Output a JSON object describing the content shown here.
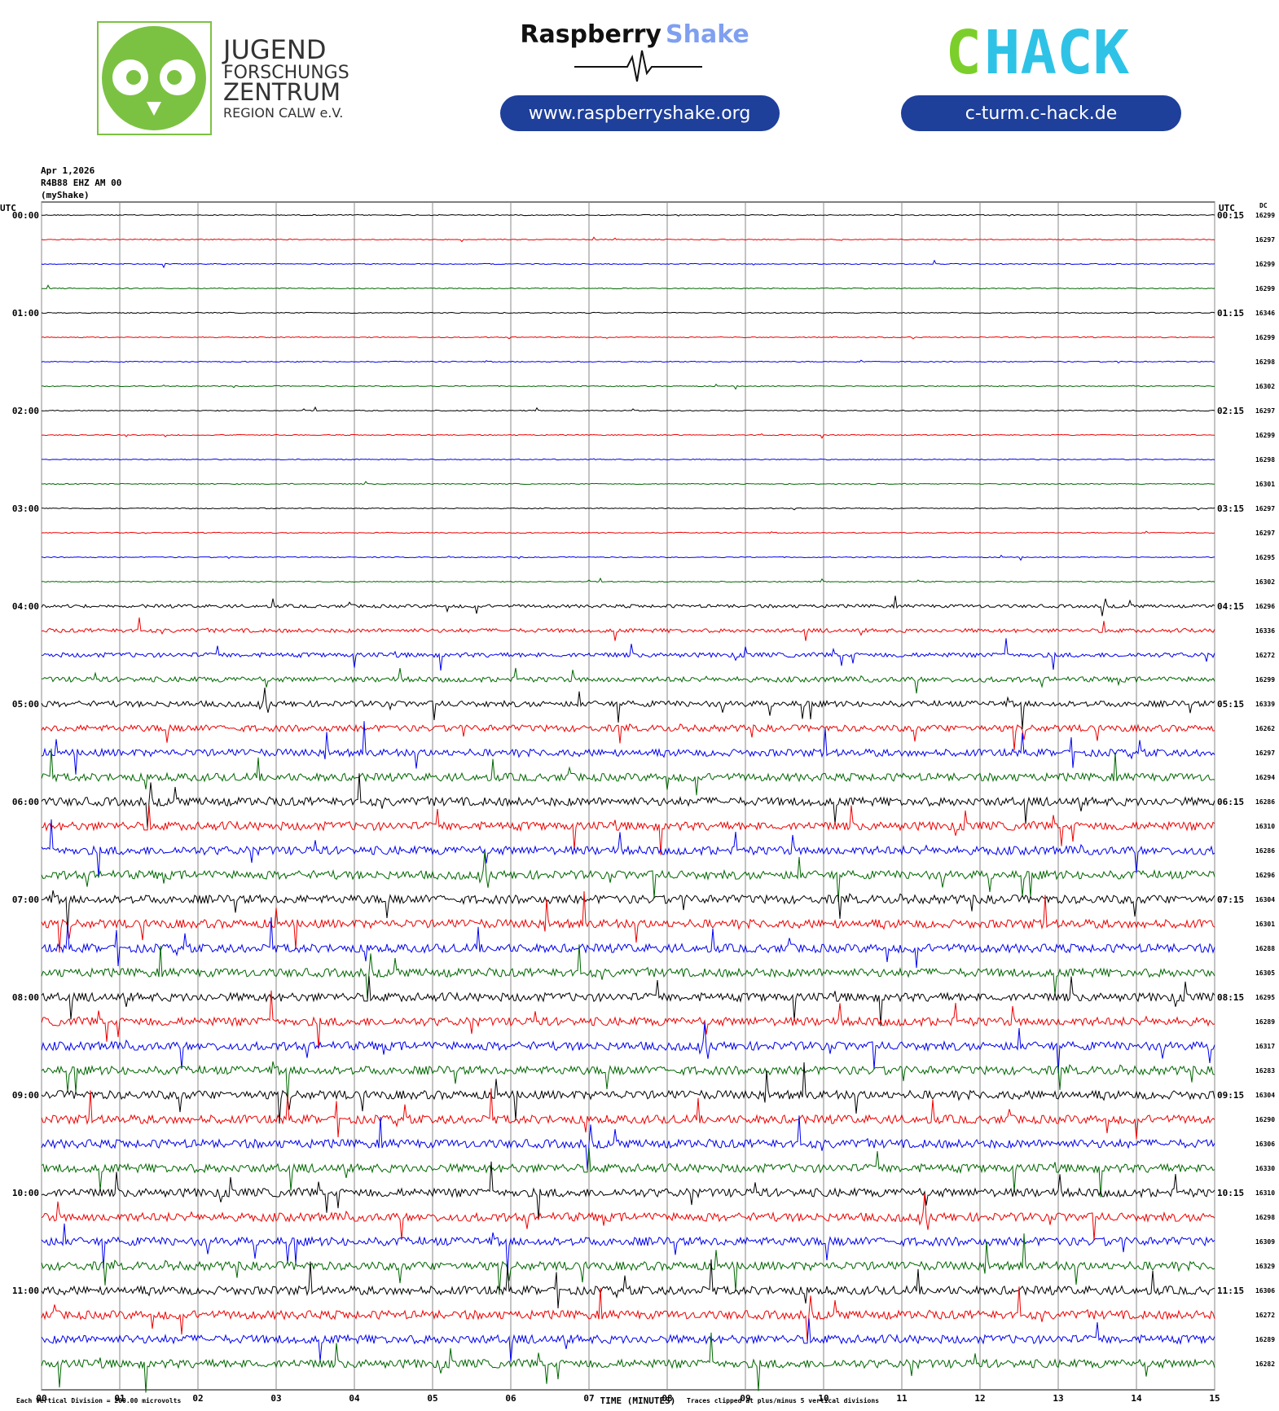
{
  "header": {
    "jugend": [
      "JUGEND",
      "FORSCHUNGS",
      "ZENTRUM",
      "REGION CALW e.V."
    ],
    "raspberry": "Raspberry",
    "shake": "Shake",
    "raspberry_url": "www.raspberryshake.org",
    "chack_c": "C",
    "chack_rest": "HACK",
    "chack_url": "c-turm.c-hack.de"
  },
  "chart_data": {
    "type": "helicorder",
    "date": "Apr 1,2026",
    "station": "R4B88 EHZ AM 00",
    "source": "(myShake)",
    "left_unit": "UTC",
    "right_unit": "UTC",
    "dc_title": "DC",
    "left_labels": [
      "00:00",
      "01:00",
      "02:00",
      "03:00",
      "04:00",
      "05:00",
      "06:00",
      "07:00",
      "08:00",
      "09:00",
      "10:00",
      "11:00"
    ],
    "right_labels": [
      "00:15",
      "01:15",
      "02:15",
      "03:15",
      "04:15",
      "05:15",
      "06:15",
      "07:15",
      "08:15",
      "09:15",
      "10:15",
      "11:15"
    ],
    "dc": [
      "16299",
      "16297",
      "16299",
      "16299",
      "16346",
      "16299",
      "16298",
      "16302",
      "16297",
      "16299",
      "16298",
      "16301",
      "16297",
      "16297",
      "16295",
      "16302",
      "16296",
      "16336",
      "16272",
      "16299",
      "16339",
      "16262",
      "16297",
      "16294",
      "16286",
      "16310",
      "16286",
      "16296",
      "16304",
      "16301",
      "16288",
      "16305",
      "16295",
      "16289",
      "16317",
      "16283",
      "16304",
      "16290",
      "16306",
      "16330",
      "16310",
      "16298",
      "16309",
      "16329",
      "16306",
      "16272",
      "16289",
      "16282"
    ],
    "colors": [
      "#000000",
      "#ee0000",
      "#0000ee",
      "#006600"
    ],
    "xlim": [
      0,
      15
    ],
    "xticks": [
      {
        "value": 0,
        "label": "00"
      },
      {
        "value": 1,
        "label": "01"
      },
      {
        "value": 2,
        "label": "02"
      },
      {
        "value": 3,
        "label": "03"
      },
      {
        "value": 4,
        "label": "04"
      },
      {
        "value": 5,
        "label": "05"
      },
      {
        "value": 6,
        "label": "06"
      },
      {
        "value": 7,
        "label": "07"
      },
      {
        "value": 8,
        "label": "08"
      },
      {
        "value": 9,
        "label": "09"
      },
      {
        "value": 10,
        "label": "10"
      },
      {
        "value": 11,
        "label": "11"
      },
      {
        "value": 12,
        "label": "12"
      },
      {
        "value": 13,
        "label": "13"
      },
      {
        "value": 14,
        "label": "14"
      },
      {
        "value": 15,
        "label": "15"
      }
    ],
    "grid": true,
    "scale_note": "Each Vertical Division =  200.00 microvolts",
    "xlabel": "TIME (MINUTES)",
    "clip_note": "Traces clipped at plus/minus 5 vertical divisions"
  }
}
